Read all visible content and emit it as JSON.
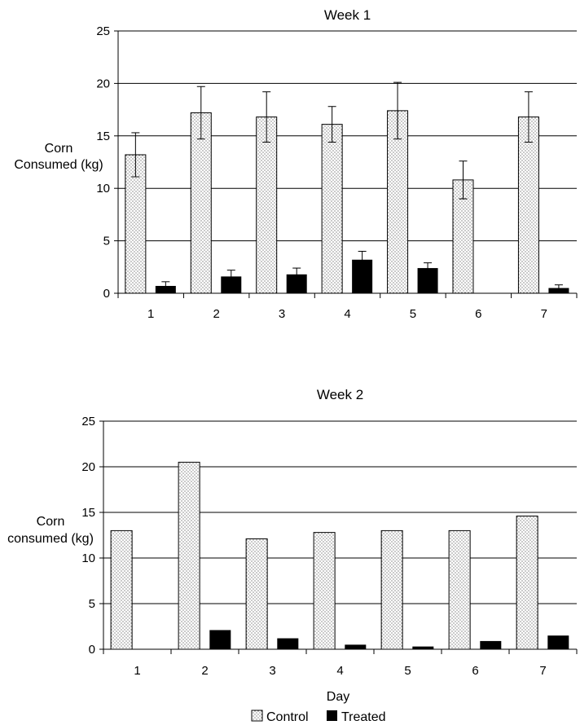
{
  "colors": {
    "control_fill": "#ffffff",
    "control_dots": "#000000",
    "treated_fill": "#000000",
    "gridline": "#000000"
  },
  "legend": {
    "control": "Control",
    "treated": "Treated"
  },
  "x_axis_label": "Day",
  "chart_data": [
    {
      "type": "bar",
      "title": "Week 1",
      "ylabel": [
        "Corn",
        "Consumed (kg)"
      ],
      "xlabel": "",
      "categories": [
        "1",
        "2",
        "3",
        "4",
        "5",
        "6",
        "7"
      ],
      "ylim": [
        0,
        25
      ],
      "yticks": [
        "0",
        "5",
        "10",
        "15",
        "20",
        "25"
      ],
      "grid": true,
      "error_bars": true,
      "series": [
        {
          "name": "Control",
          "values": [
            13.2,
            17.2,
            16.8,
            16.1,
            17.4,
            10.8,
            16.8
          ],
          "errors": [
            2.1,
            2.5,
            2.4,
            1.7,
            2.7,
            1.8,
            2.4
          ]
        },
        {
          "name": "Treated",
          "values": [
            0.7,
            1.6,
            1.8,
            3.2,
            2.4,
            0,
            0.5
          ],
          "errors": [
            0.4,
            0.6,
            0.6,
            0.8,
            0.5,
            0,
            0.3
          ]
        }
      ]
    },
    {
      "type": "bar",
      "title": "Week 2",
      "ylabel": [
        "Corn",
        "consumed (kg)"
      ],
      "xlabel": "Day",
      "categories": [
        "1",
        "2",
        "3",
        "4",
        "5",
        "6",
        "7"
      ],
      "ylim": [
        0,
        25
      ],
      "yticks": [
        "0",
        "5",
        "10",
        "15",
        "20",
        "25"
      ],
      "grid": true,
      "error_bars": false,
      "series": [
        {
          "name": "Control",
          "values": [
            13.0,
            20.5,
            12.1,
            12.8,
            13.0,
            13.0,
            14.6
          ]
        },
        {
          "name": "Treated",
          "values": [
            0,
            2.1,
            1.2,
            0.5,
            0.3,
            0.9,
            1.5
          ]
        }
      ]
    }
  ]
}
